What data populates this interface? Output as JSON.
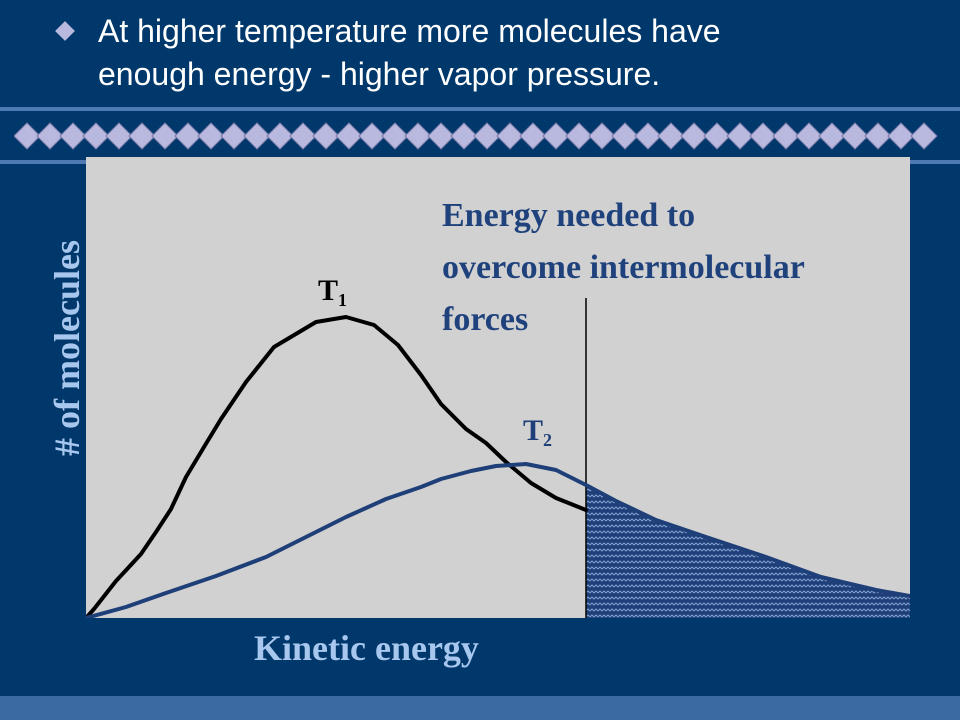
{
  "slide": {
    "bullet": {
      "icon": "diamond-bullet-icon",
      "line1": "At higher temperature more molecules have",
      "line2": "enough energy - higher vapor pressure."
    },
    "decor": {
      "band_icon": "diamond-chain-icon",
      "accent": "#b9b9e0",
      "background": "#00386b"
    }
  },
  "diagram": {
    "y_title": "# of molecules",
    "x_title": "Kinetic energy",
    "annotation": {
      "line1": "Energy needed to",
      "line2": "overcome intermolecular",
      "line3": "forces"
    },
    "curves": [
      {
        "base": "T",
        "sub": "1",
        "color": "#000000"
      },
      {
        "base": "T",
        "sub": "2",
        "color": "#1e3f78"
      }
    ],
    "shaded_region_color": "#1e3f78"
  }
}
